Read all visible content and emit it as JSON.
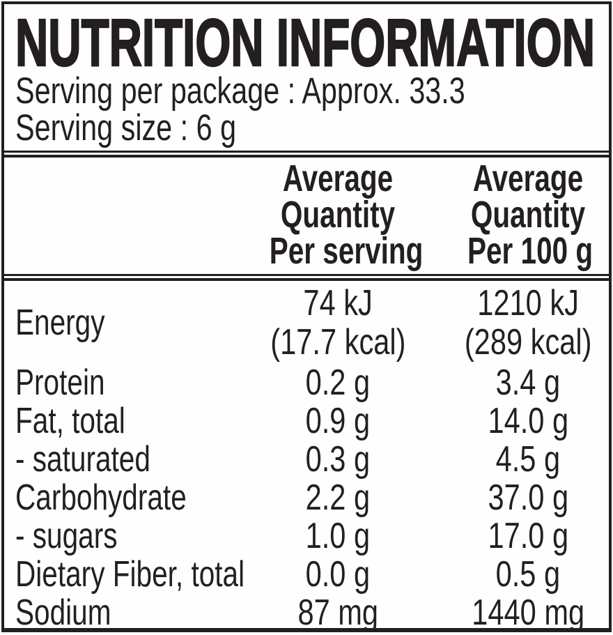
{
  "colors": {
    "text": "#231f20",
    "border": "#231f20",
    "background": "#fefefe"
  },
  "header": {
    "title": "NUTRITION INFORMATION",
    "serving_per_package": "Serving per package : Approx. 33.3",
    "serving_size": "Serving size : 6 g"
  },
  "table": {
    "columns": [
      {
        "lines": [
          "Average",
          "Quantity",
          "Per serving"
        ]
      },
      {
        "lines": [
          "Average",
          "Quantity",
          "Per 100 g"
        ]
      }
    ],
    "rows": [
      {
        "name": "Energy",
        "per_serving": "74 kJ",
        "per_serving_note": "(17.7 kcal)",
        "per_100g": "1210 kJ",
        "per_100g_note": "(289 kcal)"
      },
      {
        "name": "Protein",
        "per_serving": "0.2 g",
        "per_100g": "3.4 g"
      },
      {
        "name": "Fat, total",
        "per_serving": "0.9 g",
        "per_100g": "14.0 g"
      },
      {
        "name": "- saturated",
        "per_serving": "0.3 g",
        "per_100g": "4.5 g"
      },
      {
        "name": "Carbohydrate",
        "per_serving": "2.2 g",
        "per_100g": "37.0 g"
      },
      {
        "name": "- sugars",
        "per_serving": "1.0 g",
        "per_100g": "17.0 g"
      },
      {
        "name": "Dietary Fiber, total",
        "per_serving": "0.0 g",
        "per_100g": "0.5 g"
      },
      {
        "name": "Sodium",
        "per_serving": "87 mg",
        "per_100g": "1440 mg"
      }
    ]
  }
}
